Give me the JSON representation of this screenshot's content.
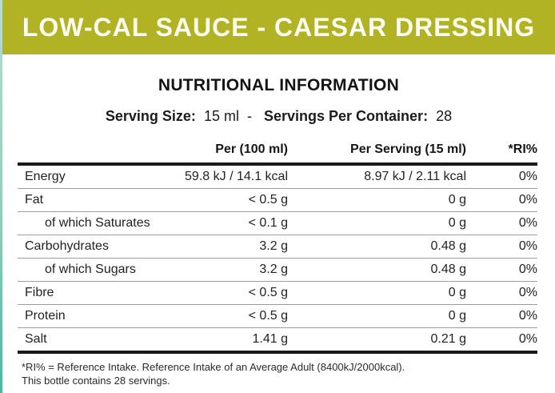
{
  "banner": {
    "title": "LOW-CAL SAUCE - CAESAR DRESSING",
    "bg_color": "#b2b324",
    "text_color": "#fcfcf0"
  },
  "accent_strip_color": "#4db6a0",
  "section": {
    "title": "NUTRITIONAL INFORMATION"
  },
  "serving": {
    "size_label": "Serving Size:",
    "size_value": "15 ml",
    "dash": "-",
    "container_label": "Servings Per Container:",
    "container_value": "28"
  },
  "table": {
    "columns": {
      "label": "",
      "per100": "Per (100 ml)",
      "per_serving": "Per Serving (15 ml)",
      "ri": "*RI%"
    },
    "rows": [
      {
        "label": "Energy",
        "per100": "59.8 kJ / 14.1 kcal",
        "per_serving": "8.97 kJ / 2.11 kcal",
        "ri": "0%"
      },
      {
        "label": "Fat",
        "per100": "< 0.5 g",
        "per_serving": "0 g",
        "ri": "0%"
      },
      {
        "label": "of which Saturates",
        "per100": "< 0.1 g",
        "per_serving": "0 g",
        "ri": "0%"
      },
      {
        "label": "Carbohydrates",
        "per100": "3.2 g",
        "per_serving": "0.48 g",
        "ri": "0%"
      },
      {
        "label": "of which Sugars",
        "per100": "3.2 g",
        "per_serving": "0.48 g",
        "ri": "0%"
      },
      {
        "label": "Fibre",
        "per100": "< 0.5 g",
        "per_serving": "0 g",
        "ri": "0%"
      },
      {
        "label": "Protein",
        "per100": "< 0.5 g",
        "per_serving": "0 g",
        "ri": "0%"
      },
      {
        "label": "Salt",
        "per100": "1.41 g",
        "per_serving": "0.21 g",
        "ri": "0%"
      }
    ]
  },
  "footnotes": {
    "line1": "*RI% = Reference Intake. Reference Intake of an Average Adult (8400kJ/2000kcal).",
    "line2": "This bottle contains 28 servings."
  }
}
